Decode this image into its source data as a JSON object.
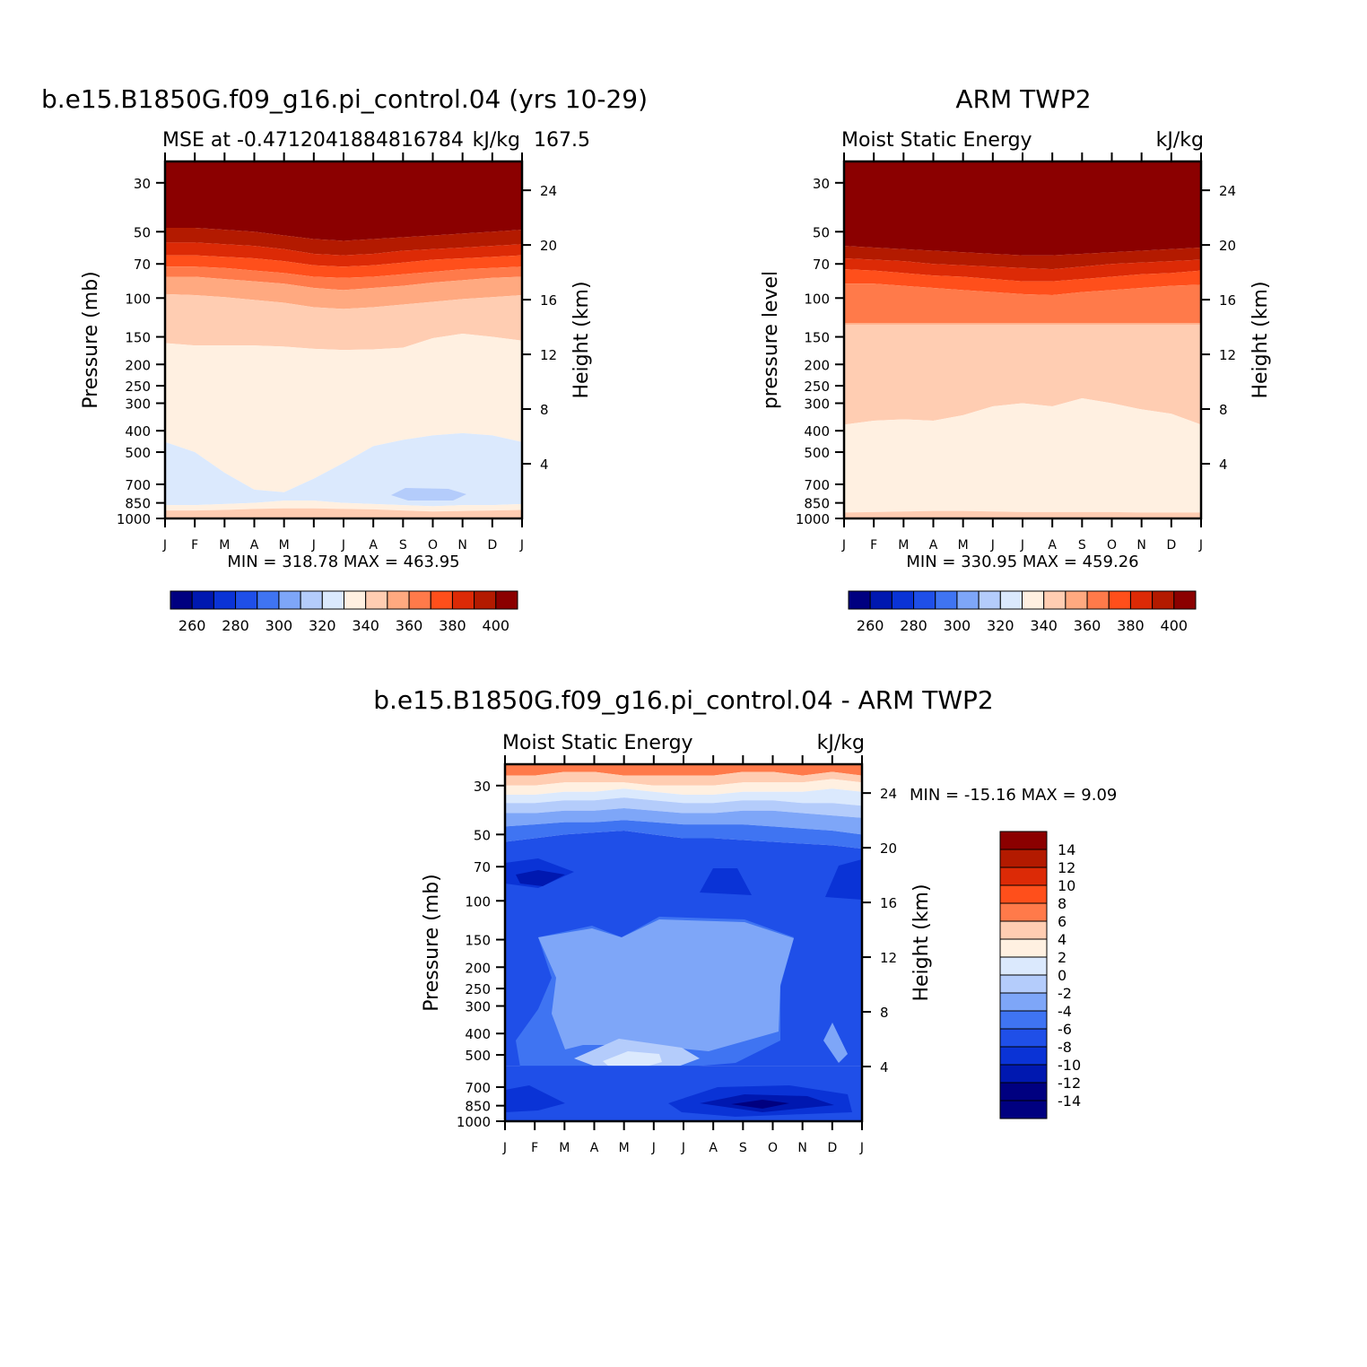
{
  "colors": {
    "levels15": [
      "#000080",
      "#0018b0",
      "#0a33d6",
      "#1f4fe8",
      "#3f74f2",
      "#7ea6f8",
      "#b4ccfb",
      "#dbe9fd",
      "#fff0e1",
      "#ffcdb2",
      "#ffa980",
      "#ff7a4a",
      "#ff4f1b",
      "#dc2a06",
      "#b31a00",
      "#8b0000"
    ],
    "diffLevels": [
      "#000080",
      "#0018b0",
      "#0a33d6",
      "#1f4fe8",
      "#3f74f2",
      "#7ea6f8",
      "#b4ccfb",
      "#dbe9fd",
      "#fff0e1",
      "#ffcdb2",
      "#ff7a4a",
      "#ff4f1b",
      "#dc2a06",
      "#b31a00",
      "#8b0000"
    ]
  },
  "panels": {
    "model": {
      "title": "b.e15.B1850G.f09_g16.pi_control.04 (yrs 10-29)",
      "subtitle": "MSE at -0.4712041884816784",
      "subtitle_right": "kJ/kg",
      "subtitle_coord": "167.5",
      "ylabel": "Pressure (mb)",
      "right_label": "Height (km)",
      "minmax": "MIN = 318.78 MAX = 463.95"
    },
    "obs": {
      "title": "ARM TWP2",
      "subtitle": "Moist Static Energy",
      "subtitle_right": "kJ/kg",
      "ylabel": "pressure level",
      "right_label": "Height (km)",
      "minmax": "MIN = 330.95 MAX = 459.26"
    },
    "diff": {
      "title": "b.e15.B1850G.f09_g16.pi_control.04 - ARM TWP2",
      "subtitle": "Moist Static Energy",
      "subtitle_right": "kJ/kg",
      "ylabel": "Pressure (mb)",
      "right_label": "Height (km)",
      "minmax": "MIN = -15.16 MAX =    9.09"
    }
  },
  "chart_data": [
    {
      "type": "heatmap",
      "title": "b.e15.B1850G.f09_g16.pi_control.04 (yrs 10-29)",
      "subtitle": "MSE at -0.4712041884816784 167.5",
      "units": "kJ/kg",
      "x": [
        "J",
        "F",
        "M",
        "A",
        "M",
        "J",
        "J",
        "A",
        "S",
        "O",
        "N",
        "D",
        "J"
      ],
      "ylabel": "Pressure (mb)",
      "y_ticks": [
        30,
        50,
        70,
        100,
        150,
        200,
        250,
        300,
        400,
        500,
        700,
        850,
        1000
      ],
      "y_scale": "log",
      "right_axis": {
        "label": "Height (km)",
        "ticks": [
          4,
          8,
          12,
          16,
          20,
          24
        ]
      },
      "colorbar": {
        "levels": [
          260,
          280,
          300,
          320,
          340,
          360,
          380,
          400
        ]
      },
      "min": 318.78,
      "max": 463.95
    },
    {
      "type": "heatmap",
      "title": "ARM TWP2",
      "subtitle": "Moist Static Energy",
      "units": "kJ/kg",
      "x": [
        "J",
        "F",
        "M",
        "A",
        "M",
        "J",
        "J",
        "A",
        "S",
        "O",
        "N",
        "D",
        "J"
      ],
      "ylabel": "pressure level",
      "y_ticks": [
        30,
        50,
        70,
        100,
        150,
        200,
        250,
        300,
        400,
        500,
        700,
        850,
        1000
      ],
      "y_scale": "log",
      "right_axis": {
        "label": "Height (km)",
        "ticks": [
          4,
          8,
          12,
          16,
          20,
          24
        ]
      },
      "colorbar": {
        "levels": [
          260,
          280,
          300,
          320,
          340,
          360,
          380,
          400
        ]
      },
      "min": 330.95,
      "max": 459.26
    },
    {
      "type": "heatmap",
      "title": "b.e15.B1850G.f09_g16.pi_control.04 - ARM TWP2",
      "subtitle": "Moist Static Energy",
      "units": "kJ/kg",
      "x": [
        "J",
        "F",
        "M",
        "A",
        "M",
        "J",
        "J",
        "A",
        "S",
        "O",
        "N",
        "D",
        "J"
      ],
      "ylabel": "Pressure (mb)",
      "y_ticks": [
        30,
        50,
        70,
        100,
        150,
        200,
        250,
        300,
        400,
        500,
        700,
        850,
        1000
      ],
      "y_scale": "log",
      "right_axis": {
        "label": "Height (km)",
        "ticks": [
          4,
          8,
          12,
          16,
          20,
          24
        ]
      },
      "colorbar": {
        "labels": [
          "14",
          "12",
          "10",
          "8",
          "6",
          "4",
          "2",
          "0",
          "-2",
          "-4",
          "-6",
          "-8",
          "-10",
          "-12",
          "-14"
        ]
      },
      "min": -15.16,
      "max": 9.09
    }
  ]
}
